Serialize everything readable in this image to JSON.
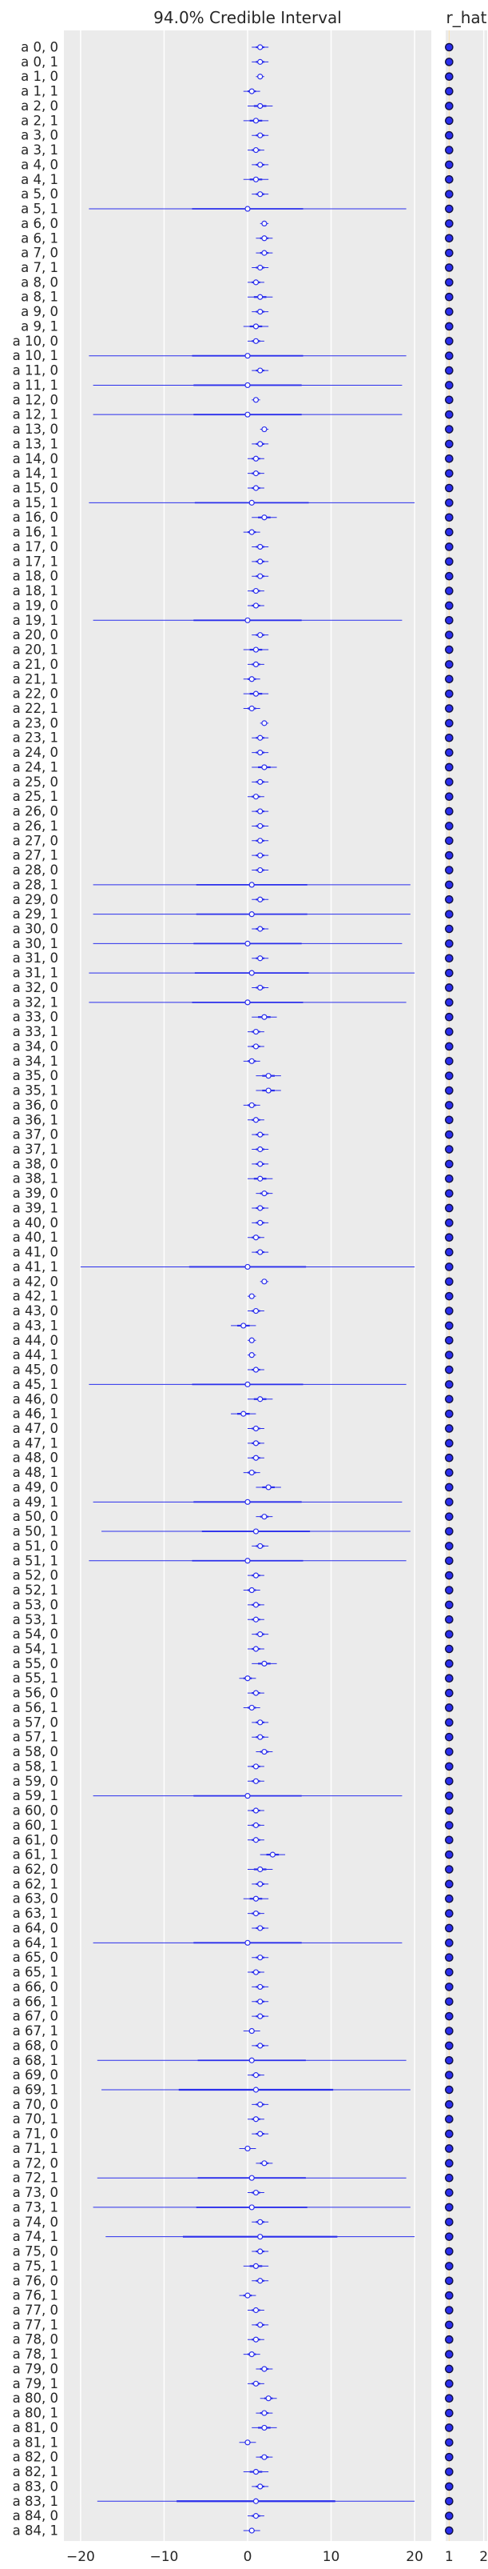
{
  "chart_data": {
    "type": "forest",
    "titles": {
      "interval": "94.0% Credible Interval",
      "rhat": "r_hat"
    },
    "colors": {
      "interval": "#2a2eec",
      "rhat_marker": "#2a2eec",
      "rhat_edge": "#0f0f3f",
      "panel_bg": "#ebebeb",
      "grid": "#ffffff",
      "rhat_ref": "#f5deb3"
    },
    "xaxis_interval": {
      "ticks": [
        -20,
        -10,
        0,
        10,
        20
      ],
      "range": [
        -22,
        22
      ]
    },
    "xaxis_rhat": {
      "ticks": [
        1,
        2
      ],
      "range": [
        0.9,
        2.1
      ]
    },
    "labels": [
      "a 0, 0",
      "a 0, 1",
      "a 1, 0",
      "a 1, 1",
      "a 2, 0",
      "a 2, 1",
      "a 3, 0",
      "a 3, 1",
      "a 4, 0",
      "a 4, 1",
      "a 5, 0",
      "a 5, 1",
      "a 6, 0",
      "a 6, 1",
      "a 7, 0",
      "a 7, 1",
      "a 8, 0",
      "a 8, 1",
      "a 9, 0",
      "a 9, 1",
      "a 10, 0",
      "a 10, 1",
      "a 11, 0",
      "a 11, 1",
      "a 12, 0",
      "a 12, 1",
      "a 13, 0",
      "a 13, 1",
      "a 14, 0",
      "a 14, 1",
      "a 15, 0",
      "a 15, 1",
      "a 16, 0",
      "a 16, 1",
      "a 17, 0",
      "a 17, 1",
      "a 18, 0",
      "a 18, 1",
      "a 19, 0",
      "a 19, 1",
      "a 20, 0",
      "a 20, 1",
      "a 21, 0",
      "a 21, 1",
      "a 22, 0",
      "a 22, 1",
      "a 23, 0",
      "a 23, 1",
      "a 24, 0",
      "a 24, 1",
      "a 25, 0",
      "a 25, 1",
      "a 26, 0",
      "a 26, 1",
      "a 27, 0",
      "a 27, 1",
      "a 28, 0",
      "a 28, 1",
      "a 29, 0",
      "a 29, 1",
      "a 30, 0",
      "a 30, 1",
      "a 31, 0",
      "a 31, 1",
      "a 32, 0",
      "a 32, 1",
      "a 33, 0",
      "a 33, 1",
      "a 34, 0",
      "a 34, 1",
      "a 35, 0",
      "a 35, 1",
      "a 36, 0",
      "a 36, 1",
      "a 37, 0",
      "a 37, 1",
      "a 38, 0",
      "a 38, 1",
      "a 39, 0",
      "a 39, 1",
      "a 40, 0",
      "a 40, 1",
      "a 41, 0",
      "a 41, 1",
      "a 42, 0",
      "a 42, 1",
      "a 43, 0",
      "a 43, 1",
      "a 44, 0",
      "a 44, 1",
      "a 45, 0",
      "a 45, 1",
      "a 46, 0",
      "a 46, 1",
      "a 47, 0",
      "a 47, 1",
      "a 48, 0",
      "a 48, 1",
      "a 49, 0",
      "a 49, 1",
      "a 50, 0",
      "a 50, 1",
      "a 51, 0",
      "a 51, 1",
      "a 52, 0",
      "a 52, 1",
      "a 53, 0",
      "a 53, 1",
      "a 54, 0",
      "a 54, 1",
      "a 55, 0",
      "a 55, 1",
      "a 56, 0",
      "a 56, 1",
      "a 57, 0",
      "a 57, 1",
      "a 58, 0",
      "a 58, 1",
      "a 59, 0",
      "a 59, 1",
      "a 60, 0",
      "a 60, 1",
      "a 61, 0",
      "a 61, 1",
      "a 62, 0",
      "a 62, 1",
      "a 63, 0",
      "a 63, 1",
      "a 64, 0",
      "a 64, 1",
      "a 65, 0",
      "a 65, 1",
      "a 66, 0",
      "a 66, 1",
      "a 67, 0",
      "a 67, 1",
      "a 68, 0",
      "a 68, 1",
      "a 69, 0",
      "a 69, 1",
      "a 70, 0",
      "a 70, 1",
      "a 71, 0",
      "a 71, 1",
      "a 72, 0",
      "a 72, 1",
      "a 73, 0",
      "a 73, 1",
      "a 74, 0",
      "a 74, 1",
      "a 75, 0",
      "a 75, 1",
      "a 76, 0",
      "a 76, 1",
      "a 77, 0",
      "a 77, 1",
      "a 78, 0",
      "a 78, 1",
      "a 79, 0",
      "a 79, 1",
      "a 80, 0",
      "a 80, 1",
      "a 81, 0",
      "a 81, 1",
      "a 82, 0",
      "a 82, 1",
      "a 83, 0",
      "a 83, 1",
      "a 84, 0",
      "a 84, 1"
    ],
    "wide_rows": [
      "a 5, 1",
      "a 10, 1",
      "a 11, 1",
      "a 12, 1",
      "a 15, 1",
      "a 19, 1",
      "a 28, 1",
      "a 29, 1",
      "a 30, 1",
      "a 31, 1",
      "a 32, 1",
      "a 41, 1",
      "a 45, 1",
      "a 49, 1",
      "a 50, 1",
      "a 51, 1",
      "a 59, 1",
      "a 64, 1",
      "a 67, 1",
      "a 68, 1",
      "a 71, 1",
      "a 72, 1",
      "a 73, 1",
      "a 81, 1",
      "a 84, 1"
    ],
    "median": [
      1.5,
      1.5,
      1.5,
      0.5,
      1.5,
      1,
      1.5,
      1,
      1.5,
      1,
      1.5,
      0,
      2,
      2,
      2,
      1.5,
      1,
      1.5,
      1.5,
      1,
      1,
      0,
      1.5,
      0,
      1,
      0,
      2,
      1.5,
      1,
      1,
      1,
      0.5,
      2,
      0.5,
      1.5,
      1.5,
      1.5,
      1,
      1,
      0,
      1.5,
      1,
      1,
      0.5,
      1,
      0.5,
      2,
      1.5,
      1.5,
      2,
      1.5,
      1,
      1.5,
      1.5,
      1.5,
      1.5,
      1.5,
      0.5,
      1.5,
      0.5,
      1.5,
      0,
      1.5,
      0.5,
      1.5,
      0,
      2,
      1,
      1,
      0.5,
      2.5,
      2.5,
      0.5,
      1,
      1.5,
      1.5,
      1.5,
      1.5,
      2,
      1.5,
      1.5,
      1,
      1.5,
      0,
      2,
      0.5,
      1,
      -0.5,
      0.5,
      0.5,
      1,
      0,
      1.5,
      -0.5,
      1,
      1,
      1,
      0.5,
      2.5,
      0,
      2,
      1,
      1.5,
      0,
      1,
      0.5,
      1,
      1,
      1.5,
      1,
      2,
      0,
      1,
      0.5,
      1.5,
      1.5,
      2,
      1,
      1,
      0,
      1,
      1,
      1,
      3,
      1.5,
      1.5,
      1,
      1,
      1.5,
      0,
      1.5,
      1,
      1.5,
      1.5,
      1.5,
      0.5,
      1.5,
      0.5,
      1,
      1,
      1.5,
      1,
      1.5,
      0,
      2,
      0.5,
      1,
      0.5,
      1.5,
      1.5,
      1.5,
      1,
      1.5,
      0,
      1,
      1.5,
      1,
      0.5,
      2,
      1,
      2.5,
      2,
      2,
      0,
      2,
      1,
      1.5,
      1,
      1,
      0.5
    ],
    "hdi_half": [
      1,
      1,
      0.5,
      1,
      1.5,
      1.5,
      1,
      1,
      1,
      1.5,
      1,
      19,
      0.5,
      1,
      1,
      1,
      1,
      1.5,
      1,
      1.5,
      1,
      19,
      1,
      18.5,
      0.5,
      18.5,
      0.5,
      1,
      1,
      1,
      1,
      19.5,
      1.5,
      1,
      1,
      1,
      1,
      1,
      1,
      18.5,
      1,
      1.5,
      1,
      1,
      1.5,
      1,
      0.5,
      1,
      1,
      1.5,
      1,
      1,
      1,
      1,
      1,
      1,
      1,
      19,
      1,
      19,
      1,
      18.5,
      1,
      19.5,
      1,
      19,
      1.5,
      1,
      1,
      1,
      1.5,
      1.5,
      1,
      1,
      1,
      1,
      1,
      1.5,
      1,
      1,
      1,
      1,
      1,
      20,
      0.5,
      0.5,
      1,
      1.5,
      0.5,
      0.5,
      1,
      19,
      1.5,
      1.5,
      1,
      1,
      1,
      1,
      1.5,
      18.5,
      1,
      18.5,
      1,
      19,
      1,
      1,
      1,
      1,
      1,
      1,
      1.5,
      1,
      1,
      1,
      1,
      1,
      1,
      1,
      1,
      18.5,
      1,
      1,
      1,
      1.5,
      1.5,
      1,
      1.5,
      1,
      1,
      18.5,
      1,
      1,
      1,
      1,
      1,
      1,
      1,
      18.5,
      1,
      18.5,
      1,
      1,
      1,
      1,
      1,
      18.5,
      1,
      19,
      1,
      18.5,
      1,
      1.5,
      1,
      1,
      1,
      1,
      1,
      1,
      1,
      1,
      1,
      1,
      1.5,
      1,
      1,
      1.5,
      1,
      19,
      1,
      1,
      1,
      1,
      1.5,
      19
    ],
    "rhat": 1.0
  }
}
